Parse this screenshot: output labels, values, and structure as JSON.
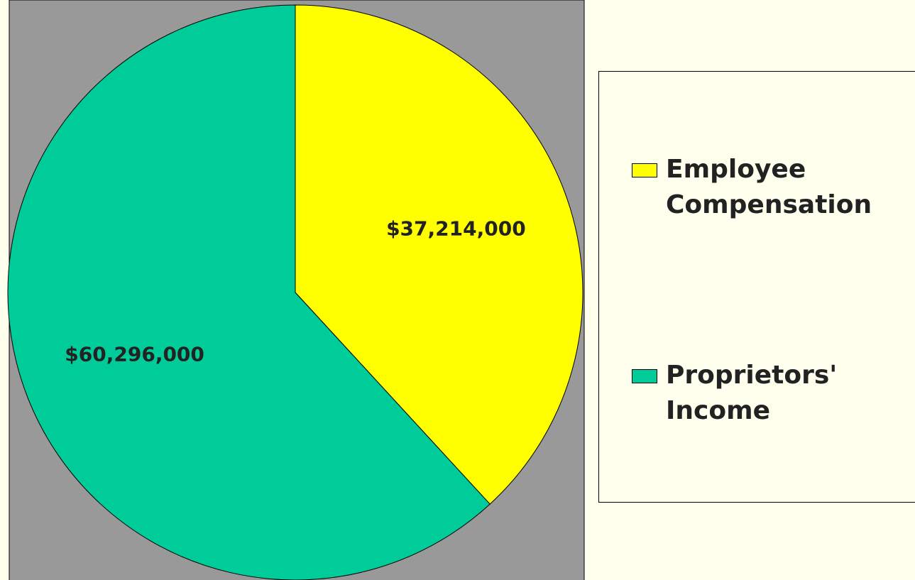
{
  "chart_data": {
    "type": "pie",
    "series": [
      {
        "name": "Employee Compensation",
        "color": "#ffff00",
        "values": [
          37214000
        ],
        "value_labels": [
          "$37,214,000"
        ]
      },
      {
        "name": "Proprietors' Income",
        "color": "#00cc99",
        "values": [
          60296000
        ],
        "value_labels": [
          "$60,296,000"
        ]
      }
    ]
  }
}
